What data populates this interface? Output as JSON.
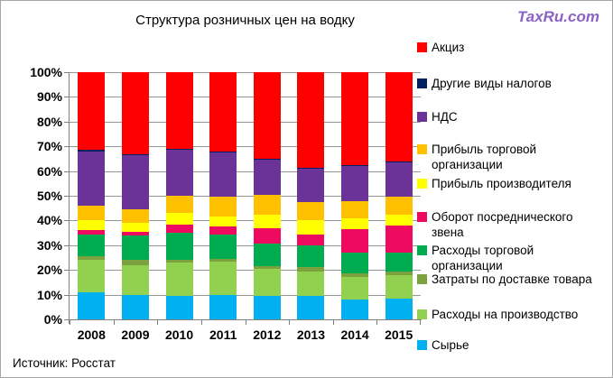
{
  "logo": {
    "text": "TaxRu.com",
    "color": "#8b63c5"
  },
  "title": "Структура розничных цен на водку",
  "source": "Источник: Росстат",
  "chart_data": {
    "type": "bar",
    "stacked": true,
    "percent_stacked": true,
    "title": "Структура розничных цен на водку",
    "xlabel": "",
    "ylabel": "",
    "ylim": [
      0,
      100
    ],
    "grid": true,
    "legend_position": "right",
    "categories": [
      "2008",
      "2009",
      "2010",
      "2011",
      "2012",
      "2013",
      "2014",
      "2015"
    ],
    "y_axis_labels": [
      "100%",
      "90%",
      "80%",
      "70%",
      "60%",
      "50%",
      "40%",
      "30%",
      "20%",
      "10%",
      "0%"
    ],
    "series": [
      {
        "name": "Сырье",
        "color": "#00b0f0",
        "values": [
          11,
          10,
          9.5,
          10,
          9.5,
          9.5,
          8,
          8.5
        ]
      },
      {
        "name": "Расходы на производство",
        "color": "#92d050",
        "values": [
          13,
          12,
          13.5,
          13.5,
          11,
          10,
          9,
          9.5
        ]
      },
      {
        "name": "Затраты по доставке товара",
        "color": "#7ca13f",
        "values": [
          1.5,
          2,
          1,
          1,
          1,
          1.5,
          1.5,
          1.5
        ]
      },
      {
        "name": "Расходы торговой организации",
        "color": "#00ac50",
        "values": [
          9,
          10,
          11,
          10,
          9,
          9,
          8.5,
          7.5
        ]
      },
      {
        "name": "Оборот посреднического звена",
        "color": "#ee0a60",
        "values": [
          1.5,
          1.5,
          3.5,
          3,
          6.5,
          4.5,
          9.5,
          11
        ]
      },
      {
        "name": "Прибыль производителя",
        "color": "#ffff00",
        "values": [
          4,
          3.5,
          4.5,
          4,
          5.5,
          5.5,
          4.5,
          4.5
        ]
      },
      {
        "name": "Прибыль торговой организации",
        "color": "#ffc000",
        "values": [
          6,
          5.5,
          7,
          8,
          8,
          7.5,
          7,
          7
        ]
      },
      {
        "name": "НДС",
        "color": "#6b3398",
        "values": [
          22,
          22,
          18.5,
          18,
          14,
          13.5,
          14,
          14
        ]
      },
      {
        "name": "Другие виды налогов",
        "color": "#002060",
        "values": [
          0.5,
          0.5,
          0.5,
          0.5,
          0.5,
          0.5,
          0.5,
          0.5
        ]
      },
      {
        "name": "Акциз",
        "color": "#ff0000",
        "values": [
          31.5,
          33,
          31,
          32,
          35,
          38.5,
          37.5,
          36
        ]
      }
    ],
    "legend_items": [
      {
        "label": "Акциз",
        "color": "#ff0000"
      },
      {
        "label": "Другие виды налогов",
        "color": "#002060"
      },
      {
        "label": "НДС",
        "color": "#6b3398"
      },
      {
        "label": "Прибыль торговой\nорганизации",
        "color": "#ffc000"
      },
      {
        "label": "Прибыль производителя",
        "color": "#ffff00"
      },
      {
        "label": "Оборот посреднического\nзвена",
        "color": "#ee0a60"
      },
      {
        "label": "Расходы торговой\nорганизации",
        "color": "#00ac50"
      },
      {
        "label": "Затраты по доставке товара",
        "color": "#7ca13f"
      },
      {
        "label": "Расходы на производство",
        "color": "#92d050"
      },
      {
        "label": "Сырье",
        "color": "#00b0f0"
      }
    ]
  }
}
